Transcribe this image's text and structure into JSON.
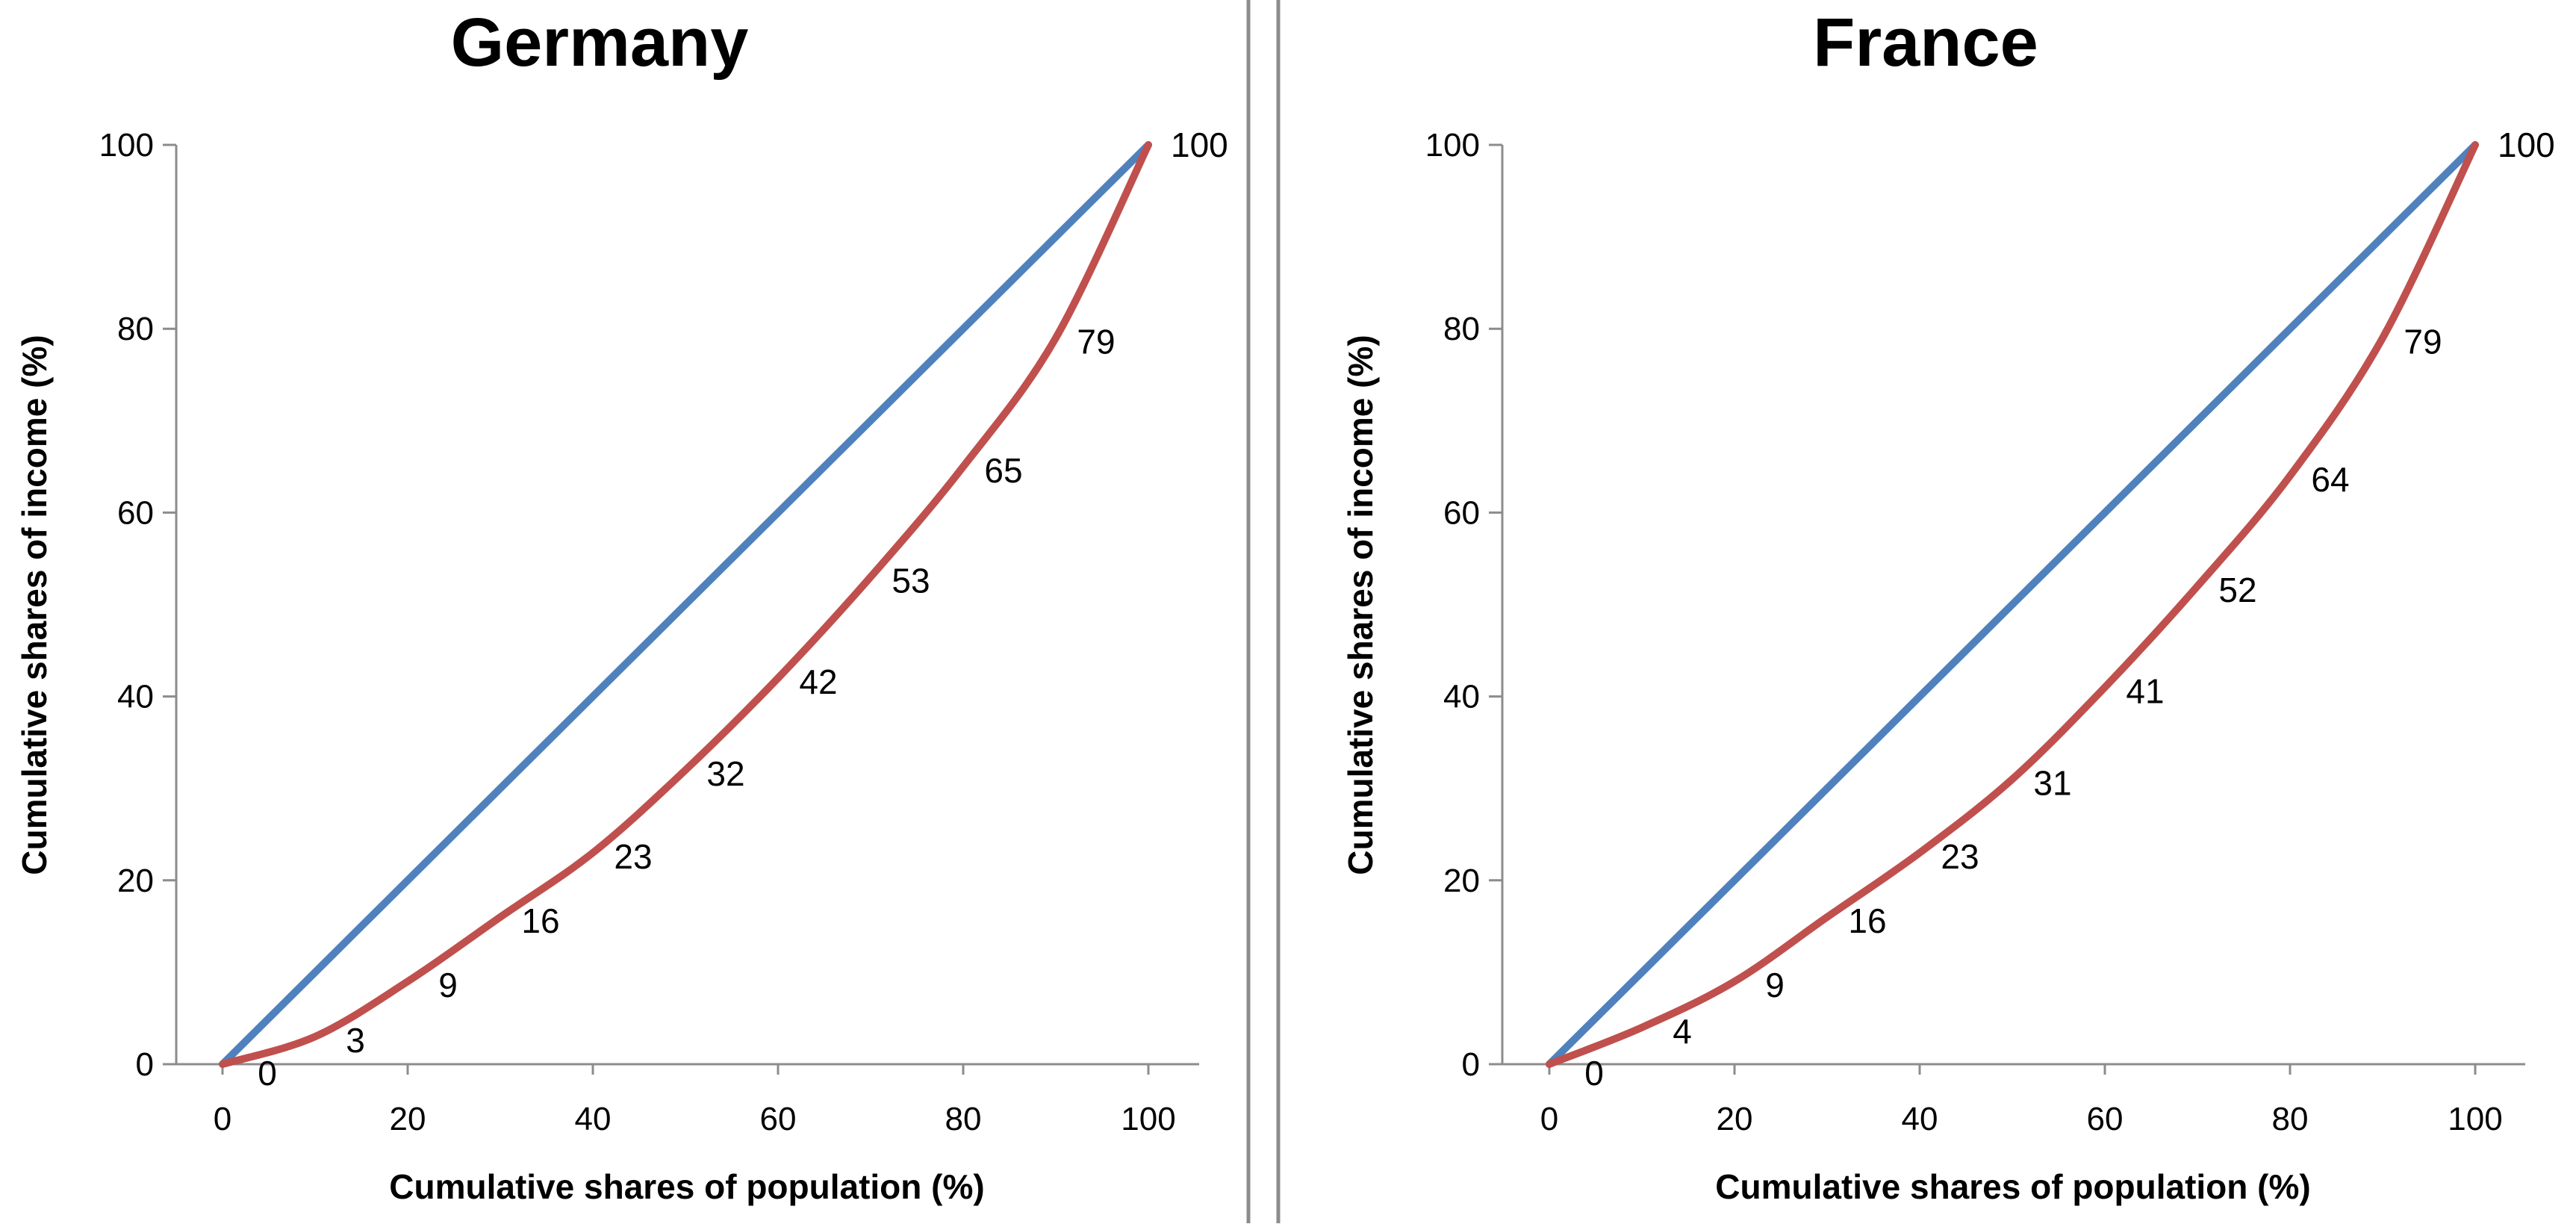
{
  "chart_data": [
    {
      "type": "line",
      "title": "Germany",
      "xlabel": "Cumulative shares of population (%)",
      "ylabel": "Cumulative shares of income (%)",
      "xlim": [
        0,
        100
      ],
      "ylim": [
        0,
        100
      ],
      "x_ticks": [
        "0",
        "20",
        "40",
        "60",
        "80",
        "100"
      ],
      "y_ticks": [
        "0",
        "20",
        "40",
        "60",
        "80",
        "100"
      ],
      "x": [
        0,
        10,
        20,
        30,
        40,
        50,
        60,
        70,
        80,
        90,
        100
      ],
      "series": [
        {
          "color": "#4f81bd",
          "values": [
            0,
            10,
            20,
            30,
            40,
            50,
            60,
            70,
            80,
            90,
            100
          ]
        },
        {
          "color": "#c0504d",
          "values": [
            0,
            3,
            9,
            16,
            23,
            32,
            42,
            53,
            65,
            79,
            100
          ],
          "labels": [
            "0",
            "3",
            "9",
            "16",
            "23",
            "32",
            "42",
            "53",
            "65",
            "79",
            "100"
          ]
        }
      ],
      "grid": false,
      "legend": "none"
    },
    {
      "type": "line",
      "title": "France",
      "xlabel": "Cumulative shares of population (%)",
      "ylabel": "Cumulative shares of income (%)",
      "xlim": [
        0,
        100
      ],
      "ylim": [
        0,
        100
      ],
      "x_ticks": [
        "0",
        "20",
        "40",
        "60",
        "80",
        "100"
      ],
      "y_ticks": [
        "0",
        "20",
        "40",
        "60",
        "80",
        "100"
      ],
      "x": [
        0,
        10,
        20,
        30,
        40,
        50,
        60,
        70,
        80,
        90,
        100
      ],
      "series": [
        {
          "color": "#4f81bd",
          "values": [
            0,
            10,
            20,
            30,
            40,
            50,
            60,
            70,
            80,
            90,
            100
          ]
        },
        {
          "color": "#c0504d",
          "values": [
            0,
            4,
            9,
            16,
            23,
            31,
            41,
            52,
            64,
            79,
            100
          ],
          "labels": [
            "0",
            "4",
            "9",
            "16",
            "23",
            "31",
            "41",
            "52",
            "64",
            "79",
            "100"
          ]
        }
      ],
      "grid": false,
      "legend": "none"
    }
  ]
}
